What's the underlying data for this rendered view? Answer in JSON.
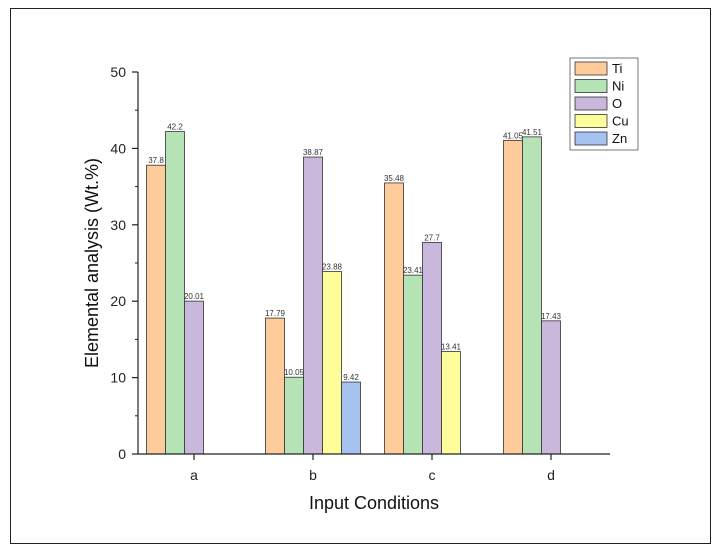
{
  "chart_data": {
    "type": "bar",
    "title": "",
    "xlabel": "Input Conditions",
    "ylabel": "Elemental analysis (Wt.%)",
    "ylim": [
      0,
      50
    ],
    "yticks": [
      0,
      10,
      20,
      30,
      40,
      50
    ],
    "categories": [
      "a",
      "b",
      "c",
      "d"
    ],
    "series": [
      {
        "name": "Ti",
        "color": "#FDCC9A",
        "values": [
          37.8,
          17.79,
          35.48,
          41.05
        ],
        "labels": [
          "37.8",
          "17.79",
          "35.48",
          "41.05"
        ]
      },
      {
        "name": "Ni",
        "color": "#B5E3B5",
        "values": [
          42.2,
          10.05,
          23.41,
          41.51
        ],
        "labels": [
          "42.2",
          "10.05",
          "23.41",
          "41.51"
        ]
      },
      {
        "name": "O",
        "color": "#C9B8DC",
        "values": [
          20.01,
          38.87,
          27.7,
          17.43
        ],
        "labels": [
          "20.01",
          "38.87",
          "27.7",
          "17.43"
        ]
      },
      {
        "name": "Cu",
        "color": "#FDFD9A",
        "values": [
          null,
          23.88,
          13.41,
          null
        ],
        "labels": [
          null,
          "23.88",
          "13.41",
          null
        ]
      },
      {
        "name": "Zn",
        "color": "#A6C2F0",
        "values": [
          null,
          9.42,
          null,
          null
        ],
        "labels": [
          null,
          "9.42",
          null,
          null
        ]
      }
    ],
    "legend": "top-right",
    "grid": false
  }
}
